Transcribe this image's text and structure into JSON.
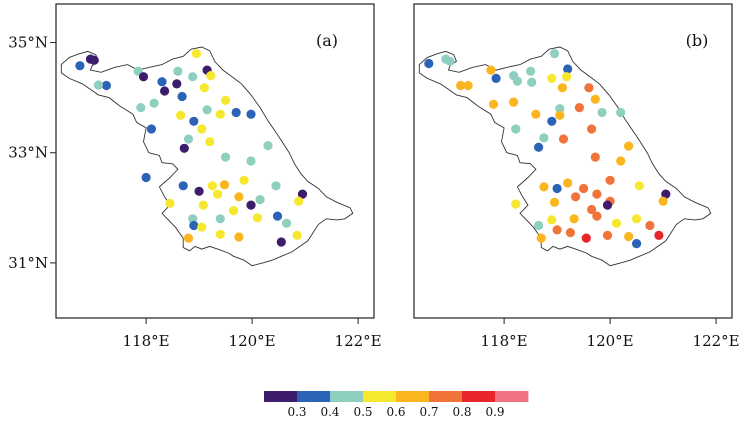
{
  "chart_data": {
    "type": "scatter",
    "colorbar": {
      "colors": [
        "#3d1c6b",
        "#2b63b6",
        "#8ecfbf",
        "#f6e82e",
        "#fbb51f",
        "#f07439",
        "#e8252b",
        "#f07384"
      ],
      "tick_labels": [
        "0.3",
        "0.4",
        "0.5",
        "0.6",
        "0.7",
        "0.8",
        "0.9"
      ]
    },
    "panels": [
      {
        "label": "(a)",
        "xlim": [
          116.3,
          122.3
        ],
        "ylim": [
          30.0,
          35.7
        ],
        "x_ticks": [
          118,
          120,
          122
        ],
        "x_tick_labels": [
          "118°E",
          "120°E",
          "122°E"
        ],
        "y_ticks": [
          35,
          33,
          31
        ],
        "y_tick_labels": [
          "35°N",
          "33°N",
          "31°N"
        ],
        "stations": [
          {
            "lon": 116.75,
            "lat": 34.58,
            "v": 0.35
          },
          {
            "lon": 116.95,
            "lat": 34.7,
            "v": 0.25
          },
          {
            "lon": 117.02,
            "lat": 34.68,
            "v": 0.25
          },
          {
            "lon": 117.25,
            "lat": 34.22,
            "v": 0.35
          },
          {
            "lon": 117.1,
            "lat": 34.23,
            "v": 0.45
          },
          {
            "lon": 117.85,
            "lat": 34.48,
            "v": 0.45
          },
          {
            "lon": 117.95,
            "lat": 34.38,
            "v": 0.25
          },
          {
            "lon": 118.3,
            "lat": 34.29,
            "v": 0.35
          },
          {
            "lon": 118.35,
            "lat": 34.12,
            "v": 0.25
          },
          {
            "lon": 118.6,
            "lat": 34.48,
            "v": 0.45
          },
          {
            "lon": 118.58,
            "lat": 34.25,
            "v": 0.25
          },
          {
            "lon": 118.68,
            "lat": 34.02,
            "v": 0.35
          },
          {
            "lon": 118.95,
            "lat": 34.8,
            "v": 0.55
          },
          {
            "lon": 119.15,
            "lat": 34.5,
            "v": 0.25
          },
          {
            "lon": 119.22,
            "lat": 34.4,
            "v": 0.55
          },
          {
            "lon": 118.88,
            "lat": 34.38,
            "v": 0.45
          },
          {
            "lon": 119.1,
            "lat": 34.18,
            "v": 0.55
          },
          {
            "lon": 118.15,
            "lat": 33.9,
            "v": 0.45
          },
          {
            "lon": 117.9,
            "lat": 33.82,
            "v": 0.45
          },
          {
            "lon": 118.65,
            "lat": 33.68,
            "v": 0.55
          },
          {
            "lon": 118.9,
            "lat": 33.57,
            "v": 0.35
          },
          {
            "lon": 119.15,
            "lat": 33.78,
            "v": 0.45
          },
          {
            "lon": 119.5,
            "lat": 33.95,
            "v": 0.55
          },
          {
            "lon": 119.4,
            "lat": 33.7,
            "v": 0.55
          },
          {
            "lon": 119.7,
            "lat": 33.73,
            "v": 0.35
          },
          {
            "lon": 119.98,
            "lat": 33.7,
            "v": 0.35
          },
          {
            "lon": 118.1,
            "lat": 33.43,
            "v": 0.35
          },
          {
            "lon": 118.8,
            "lat": 33.25,
            "v": 0.45
          },
          {
            "lon": 119.05,
            "lat": 33.43,
            "v": 0.55
          },
          {
            "lon": 119.2,
            "lat": 33.2,
            "v": 0.55
          },
          {
            "lon": 118.72,
            "lat": 33.08,
            "v": 0.25
          },
          {
            "lon": 119.5,
            "lat": 32.92,
            "v": 0.45
          },
          {
            "lon": 119.98,
            "lat": 32.85,
            "v": 0.45
          },
          {
            "lon": 120.3,
            "lat": 33.13,
            "v": 0.45
          },
          {
            "lon": 118.0,
            "lat": 32.55,
            "v": 0.35
          },
          {
            "lon": 118.7,
            "lat": 32.4,
            "v": 0.35
          },
          {
            "lon": 119.0,
            "lat": 32.3,
            "v": 0.25
          },
          {
            "lon": 119.25,
            "lat": 32.4,
            "v": 0.55
          },
          {
            "lon": 119.48,
            "lat": 32.42,
            "v": 0.65
          },
          {
            "lon": 119.85,
            "lat": 32.5,
            "v": 0.55
          },
          {
            "lon": 120.45,
            "lat": 32.4,
            "v": 0.45
          },
          {
            "lon": 120.95,
            "lat": 32.25,
            "v": 0.25
          },
          {
            "lon": 118.45,
            "lat": 32.08,
            "v": 0.55
          },
          {
            "lon": 119.08,
            "lat": 32.05,
            "v": 0.55
          },
          {
            "lon": 119.35,
            "lat": 32.25,
            "v": 0.55
          },
          {
            "lon": 119.75,
            "lat": 32.2,
            "v": 0.65
          },
          {
            "lon": 120.15,
            "lat": 32.15,
            "v": 0.45
          },
          {
            "lon": 120.88,
            "lat": 32.12,
            "v": 0.55
          },
          {
            "lon": 119.65,
            "lat": 31.95,
            "v": 0.55
          },
          {
            "lon": 119.98,
            "lat": 32.05,
            "v": 0.25
          },
          {
            "lon": 118.88,
            "lat": 31.8,
            "v": 0.45
          },
          {
            "lon": 119.4,
            "lat": 31.8,
            "v": 0.45
          },
          {
            "lon": 120.1,
            "lat": 31.82,
            "v": 0.55
          },
          {
            "lon": 120.48,
            "lat": 31.85,
            "v": 0.35
          },
          {
            "lon": 120.65,
            "lat": 31.72,
            "v": 0.45
          },
          {
            "lon": 118.9,
            "lat": 31.68,
            "v": 0.35
          },
          {
            "lon": 118.8,
            "lat": 31.45,
            "v": 0.65
          },
          {
            "lon": 119.05,
            "lat": 31.65,
            "v": 0.55
          },
          {
            "lon": 119.4,
            "lat": 31.52,
            "v": 0.55
          },
          {
            "lon": 119.75,
            "lat": 31.47,
            "v": 0.65
          },
          {
            "lon": 120.55,
            "lat": 31.38,
            "v": 0.25
          },
          {
            "lon": 120.85,
            "lat": 31.5,
            "v": 0.55
          }
        ]
      },
      {
        "label": "(b)",
        "xlim": [
          116.3,
          122.3
        ],
        "ylim": [
          30.0,
          35.7
        ],
        "x_ticks": [
          118,
          120,
          122
        ],
        "x_tick_labels": [
          "118°E",
          "120°E",
          "122°E"
        ],
        "y_ticks": [],
        "y_tick_labels": [],
        "stations": [
          {
            "lon": 116.58,
            "lat": 34.62,
            "v": 0.35
          },
          {
            "lon": 116.9,
            "lat": 34.7,
            "v": 0.45
          },
          {
            "lon": 116.98,
            "lat": 34.66,
            "v": 0.45
          },
          {
            "lon": 117.18,
            "lat": 34.22,
            "v": 0.65
          },
          {
            "lon": 117.32,
            "lat": 34.22,
            "v": 0.65
          },
          {
            "lon": 117.75,
            "lat": 34.5,
            "v": 0.65
          },
          {
            "lon": 117.85,
            "lat": 34.35,
            "v": 0.35
          },
          {
            "lon": 118.18,
            "lat": 34.4,
            "v": 0.45
          },
          {
            "lon": 118.25,
            "lat": 34.3,
            "v": 0.45
          },
          {
            "lon": 118.5,
            "lat": 34.48,
            "v": 0.45
          },
          {
            "lon": 118.52,
            "lat": 34.28,
            "v": 0.45
          },
          {
            "lon": 118.95,
            "lat": 34.8,
            "v": 0.45
          },
          {
            "lon": 119.2,
            "lat": 34.52,
            "v": 0.35
          },
          {
            "lon": 119.18,
            "lat": 34.38,
            "v": 0.55
          },
          {
            "lon": 119.6,
            "lat": 34.18,
            "v": 0.75
          },
          {
            "lon": 118.9,
            "lat": 34.35,
            "v": 0.55
          },
          {
            "lon": 119.1,
            "lat": 34.18,
            "v": 0.65
          },
          {
            "lon": 119.72,
            "lat": 33.97,
            "v": 0.65
          },
          {
            "lon": 117.8,
            "lat": 33.88,
            "v": 0.65
          },
          {
            "lon": 118.18,
            "lat": 33.92,
            "v": 0.65
          },
          {
            "lon": 118.6,
            "lat": 33.7,
            "v": 0.65
          },
          {
            "lon": 119.05,
            "lat": 33.8,
            "v": 0.45
          },
          {
            "lon": 119.05,
            "lat": 33.68,
            "v": 0.65
          },
          {
            "lon": 119.42,
            "lat": 33.82,
            "v": 0.75
          },
          {
            "lon": 119.85,
            "lat": 33.73,
            "v": 0.45
          },
          {
            "lon": 120.2,
            "lat": 33.73,
            "v": 0.45
          },
          {
            "lon": 118.9,
            "lat": 33.57,
            "v": 0.35
          },
          {
            "lon": 118.22,
            "lat": 33.43,
            "v": 0.45
          },
          {
            "lon": 119.65,
            "lat": 33.43,
            "v": 0.75
          },
          {
            "lon": 118.75,
            "lat": 33.27,
            "v": 0.45
          },
          {
            "lon": 119.12,
            "lat": 33.25,
            "v": 0.75
          },
          {
            "lon": 118.65,
            "lat": 33.1,
            "v": 0.35
          },
          {
            "lon": 120.35,
            "lat": 33.12,
            "v": 0.65
          },
          {
            "lon": 119.72,
            "lat": 32.92,
            "v": 0.75
          },
          {
            "lon": 120.2,
            "lat": 32.85,
            "v": 0.65
          },
          {
            "lon": 118.75,
            "lat": 32.38,
            "v": 0.65
          },
          {
            "lon": 119.0,
            "lat": 32.35,
            "v": 0.35
          },
          {
            "lon": 119.2,
            "lat": 32.45,
            "v": 0.65
          },
          {
            "lon": 119.5,
            "lat": 32.35,
            "v": 0.75
          },
          {
            "lon": 120.0,
            "lat": 32.5,
            "v": 0.75
          },
          {
            "lon": 120.55,
            "lat": 32.4,
            "v": 0.55
          },
          {
            "lon": 121.05,
            "lat": 32.25,
            "v": 0.25
          },
          {
            "lon": 118.22,
            "lat": 32.07,
            "v": 0.55
          },
          {
            "lon": 118.95,
            "lat": 32.1,
            "v": 0.65
          },
          {
            "lon": 119.35,
            "lat": 32.2,
            "v": 0.75
          },
          {
            "lon": 119.75,
            "lat": 32.25,
            "v": 0.75
          },
          {
            "lon": 120.0,
            "lat": 32.12,
            "v": 0.75
          },
          {
            "lon": 121.0,
            "lat": 32.12,
            "v": 0.65
          },
          {
            "lon": 119.65,
            "lat": 31.97,
            "v": 0.75
          },
          {
            "lon": 119.95,
            "lat": 32.05,
            "v": 0.25
          },
          {
            "lon": 118.9,
            "lat": 31.78,
            "v": 0.55
          },
          {
            "lon": 119.32,
            "lat": 31.8,
            "v": 0.65
          },
          {
            "lon": 119.75,
            "lat": 31.85,
            "v": 0.75
          },
          {
            "lon": 120.12,
            "lat": 31.72,
            "v": 0.55
          },
          {
            "lon": 120.5,
            "lat": 31.8,
            "v": 0.55
          },
          {
            "lon": 120.75,
            "lat": 31.68,
            "v": 0.75
          },
          {
            "lon": 118.65,
            "lat": 31.68,
            "v": 0.45
          },
          {
            "lon": 118.7,
            "lat": 31.45,
            "v": 0.65
          },
          {
            "lon": 119.0,
            "lat": 31.6,
            "v": 0.75
          },
          {
            "lon": 119.25,
            "lat": 31.55,
            "v": 0.75
          },
          {
            "lon": 119.55,
            "lat": 31.45,
            "v": 0.85
          },
          {
            "lon": 119.95,
            "lat": 31.5,
            "v": 0.75
          },
          {
            "lon": 120.35,
            "lat": 31.48,
            "v": 0.65
          },
          {
            "lon": 120.5,
            "lat": 31.35,
            "v": 0.35
          },
          {
            "lon": 120.92,
            "lat": 31.5,
            "v": 0.85
          }
        ]
      }
    ]
  }
}
